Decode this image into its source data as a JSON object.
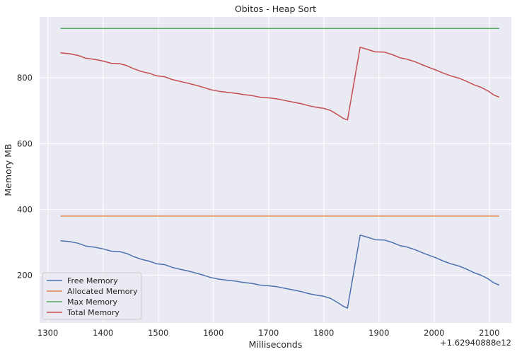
{
  "chart_data": {
    "type": "line",
    "title": "Obitos - Heap Sort",
    "xlabel": "Milliseconds",
    "ylabel": "Memory MB",
    "x_offset_label": "+1.62940888e12",
    "xlim": [
      1285,
      2140
    ],
    "ylim": [
      55,
      985
    ],
    "xticks": [
      1300,
      1400,
      1500,
      1600,
      1700,
      1800,
      1900,
      2000,
      2100
    ],
    "yticks": [
      200,
      400,
      600,
      800
    ],
    "grid": true,
    "legend_position": "lower-left",
    "series": [
      {
        "name": "Free Memory",
        "color": "#4c72b0",
        "points": [
          [
            1323,
            305
          ],
          [
            1340,
            302
          ],
          [
            1355,
            297
          ],
          [
            1368,
            289
          ],
          [
            1385,
            285
          ],
          [
            1400,
            280
          ],
          [
            1415,
            273
          ],
          [
            1430,
            272
          ],
          [
            1443,
            266
          ],
          [
            1455,
            257
          ],
          [
            1470,
            248
          ],
          [
            1483,
            243
          ],
          [
            1497,
            235
          ],
          [
            1512,
            232
          ],
          [
            1525,
            224
          ],
          [
            1540,
            218
          ],
          [
            1553,
            213
          ],
          [
            1567,
            207
          ],
          [
            1580,
            201
          ],
          [
            1595,
            193
          ],
          [
            1610,
            188
          ],
          [
            1625,
            185
          ],
          [
            1640,
            182
          ],
          [
            1655,
            178
          ],
          [
            1670,
            175
          ],
          [
            1685,
            170
          ],
          [
            1700,
            168
          ],
          [
            1715,
            165
          ],
          [
            1730,
            160
          ],
          [
            1745,
            155
          ],
          [
            1760,
            150
          ],
          [
            1773,
            144
          ],
          [
            1788,
            139
          ],
          [
            1800,
            136
          ],
          [
            1812,
            130
          ],
          [
            1825,
            117
          ],
          [
            1835,
            106
          ],
          [
            1843,
            100
          ],
          [
            1866,
            322
          ],
          [
            1880,
            315
          ],
          [
            1893,
            308
          ],
          [
            1910,
            307
          ],
          [
            1925,
            299
          ],
          [
            1938,
            290
          ],
          [
            1950,
            286
          ],
          [
            1965,
            278
          ],
          [
            1978,
            269
          ],
          [
            1990,
            261
          ],
          [
            2003,
            253
          ],
          [
            2017,
            243
          ],
          [
            2030,
            235
          ],
          [
            2045,
            228
          ],
          [
            2058,
            219
          ],
          [
            2072,
            208
          ],
          [
            2085,
            200
          ],
          [
            2098,
            189
          ],
          [
            2108,
            177
          ],
          [
            2118,
            170
          ]
        ]
      },
      {
        "name": "Allocated Memory",
        "color": "#dd8452",
        "points": [
          [
            1323,
            380
          ],
          [
            2118,
            380
          ]
        ]
      },
      {
        "name": "Max Memory",
        "color": "#55a868",
        "points": [
          [
            1323,
            950
          ],
          [
            2118,
            950
          ]
        ]
      },
      {
        "name": "Total Memory",
        "color": "#c44e52",
        "points": [
          [
            1323,
            876
          ],
          [
            1340,
            873
          ],
          [
            1355,
            868
          ],
          [
            1368,
            860
          ],
          [
            1385,
            856
          ],
          [
            1400,
            851
          ],
          [
            1415,
            844
          ],
          [
            1430,
            843
          ],
          [
            1443,
            837
          ],
          [
            1455,
            828
          ],
          [
            1470,
            819
          ],
          [
            1483,
            814
          ],
          [
            1497,
            806
          ],
          [
            1512,
            803
          ],
          [
            1525,
            795
          ],
          [
            1540,
            789
          ],
          [
            1553,
            784
          ],
          [
            1567,
            778
          ],
          [
            1580,
            772
          ],
          [
            1595,
            764
          ],
          [
            1610,
            759
          ],
          [
            1625,
            756
          ],
          [
            1640,
            753
          ],
          [
            1655,
            749
          ],
          [
            1670,
            746
          ],
          [
            1685,
            741
          ],
          [
            1700,
            739
          ],
          [
            1715,
            736
          ],
          [
            1730,
            731
          ],
          [
            1745,
            726
          ],
          [
            1760,
            721
          ],
          [
            1773,
            715
          ],
          [
            1788,
            710
          ],
          [
            1800,
            707
          ],
          [
            1812,
            701
          ],
          [
            1825,
            688
          ],
          [
            1835,
            677
          ],
          [
            1843,
            672
          ],
          [
            1866,
            893
          ],
          [
            1880,
            886
          ],
          [
            1893,
            879
          ],
          [
            1910,
            878
          ],
          [
            1925,
            870
          ],
          [
            1938,
            861
          ],
          [
            1950,
            857
          ],
          [
            1965,
            849
          ],
          [
            1978,
            840
          ],
          [
            1990,
            832
          ],
          [
            2003,
            824
          ],
          [
            2017,
            814
          ],
          [
            2030,
            806
          ],
          [
            2045,
            799
          ],
          [
            2058,
            790
          ],
          [
            2072,
            779
          ],
          [
            2085,
            771
          ],
          [
            2098,
            760
          ],
          [
            2108,
            748
          ],
          [
            2118,
            741
          ]
        ]
      }
    ]
  }
}
